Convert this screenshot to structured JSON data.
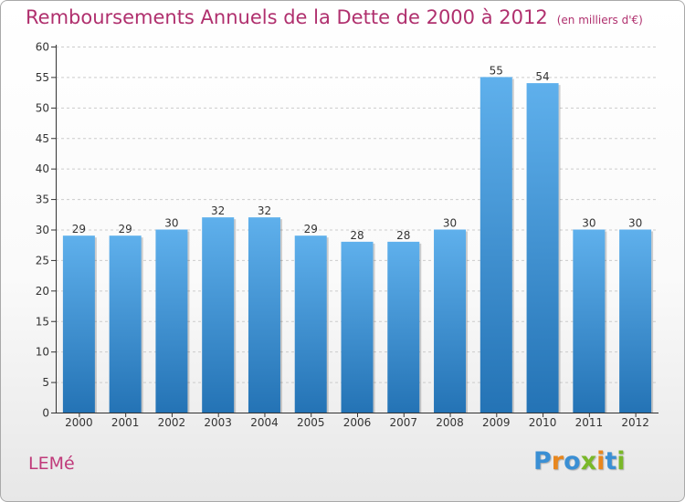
{
  "title": "Remboursements Annuels de la Dette de 2000 à 2012",
  "unit": "(en milliers d'€)",
  "commune": "LEMé",
  "logo": {
    "text": "Proxiti",
    "letter_colors": [
      "#3a8fd4",
      "#e8871e",
      "#3a8fd4",
      "#7ab829",
      "#e8871e",
      "#3a8fd4",
      "#7ab829"
    ]
  },
  "colors": {
    "bar_top": "#5fb0ec",
    "bar_bottom": "#2473b5",
    "axis": "#333333",
    "grid": "#cccccc",
    "title": "#b0306e"
  },
  "chart_data": {
    "type": "bar",
    "categories": [
      "2000",
      "2001",
      "2002",
      "2003",
      "2004",
      "2005",
      "2006",
      "2007",
      "2008",
      "2009",
      "2010",
      "2011",
      "2012"
    ],
    "values": [
      29,
      29,
      30,
      32,
      32,
      29,
      28,
      28,
      30,
      55,
      54,
      30,
      30
    ],
    "ylim": [
      0,
      60
    ],
    "yticks": [
      0,
      5,
      10,
      15,
      20,
      25,
      30,
      35,
      40,
      45,
      50,
      55,
      60
    ],
    "grid": true,
    "data_labels": true
  }
}
